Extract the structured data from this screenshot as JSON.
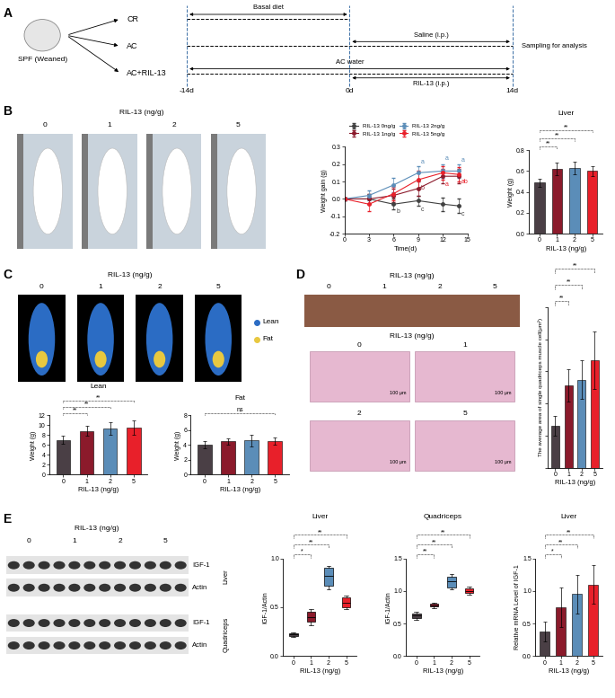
{
  "panel_labels": [
    "A",
    "B",
    "C",
    "D",
    "E"
  ],
  "diagram": {
    "animal": "SPF (Weaned)",
    "timeline": [
      {
        "value": -14,
        "label": "-14d"
      },
      {
        "value": 0,
        "label": "0d"
      },
      {
        "value": 14,
        "label": "14d"
      }
    ],
    "end_text": "Sampling for analysis",
    "groups": [
      {
        "name": "CR",
        "end": 0,
        "notes": [
          {
            "text": "Basal diet",
            "from": -14,
            "to": 0
          }
        ]
      },
      {
        "name": "AC",
        "end": 14,
        "notes": [
          {
            "text": "Saline (i.p.)",
            "from": 0,
            "to": 14
          }
        ]
      },
      {
        "name": "AC+RIL-13",
        "end": 14,
        "notes": [
          {
            "text": "AC water",
            "from": -14,
            "to": 14
          },
          {
            "text": "RIL-13 (i.p.)",
            "from": 0,
            "to": 14
          }
        ]
      }
    ]
  },
  "photos_B": {
    "header": "RIL-13 (ng/g)",
    "labels": [
      "0",
      "1",
      "2",
      "5"
    ]
  },
  "scans_C": {
    "header": "RIL-13 (ng/g)",
    "labels": [
      "0",
      "1",
      "2",
      "5"
    ],
    "legend": [
      "Lean",
      "Fat"
    ]
  },
  "photos_D": {
    "header": "RIL-13 (ng/g)",
    "labels": [
      "0",
      "1",
      "2",
      "5"
    ]
  },
  "histology_D": {
    "header": "RIL-13 (ng/g)",
    "labels": [
      "0",
      "1",
      "2",
      "5"
    ],
    "scale_bar": "100 μm"
  },
  "blot_E": {
    "header": "RIL-13 (ng/g)",
    "labels": [
      "0",
      "1",
      "2",
      "5"
    ],
    "blocks": [
      {
        "tissue": "Liver",
        "rows": [
          "IGF-1",
          "Actin"
        ]
      },
      {
        "tissue": "Quadriceps",
        "rows": [
          "IGF-1",
          "Actin"
        ]
      }
    ]
  },
  "chart_data": [
    {
      "type": "line",
      "x_label": "Time(d)",
      "y_label": "Weight gain (g)",
      "x": [
        0,
        3,
        6,
        9,
        12,
        14
      ],
      "xlim": [
        0,
        15
      ],
      "xticks": [
        0,
        3,
        6,
        9,
        12,
        15
      ],
      "ylim": [
        -0.2,
        0.3
      ],
      "yticks": [
        -0.2,
        -0.1,
        {
          "value": 0,
          "label": "0.0"
        },
        0.1,
        0.2,
        0.3
      ],
      "legend": "upper left",
      "marker": "o",
      "series": [
        {
          "name": "RIL-13 0ng/g",
          "color": "#404040",
          "values": [
            0,
            0.0,
            -0.03,
            -0.01,
            -0.03,
            -0.04
          ],
          "errors": [
            0.01,
            0.03,
            0.03,
            0.03,
            0.04,
            0.04
          ]
        },
        {
          "name": "RIL-13 1ng/g",
          "color": "#8b1a2b",
          "values": [
            0,
            0.0,
            0.02,
            0.06,
            0.13,
            0.13
          ],
          "errors": [
            0.01,
            0.03,
            0.04,
            0.04,
            0.04,
            0.04
          ]
        },
        {
          "name": "RIL-13 2ng/g",
          "color": "#5b8db8",
          "values": [
            0,
            0.02,
            0.08,
            0.15,
            0.16,
            0.16
          ],
          "errors": [
            0.01,
            0.03,
            0.04,
            0.04,
            0.04,
            0.04
          ]
        },
        {
          "name": "RIL-13 5ng/g",
          "color": "#e8202a",
          "values": [
            0,
            -0.03,
            0.03,
            0.11,
            0.15,
            0.14
          ],
          "errors": [
            0.01,
            0.04,
            0.04,
            0.05,
            0.04,
            0.04
          ]
        }
      ],
      "annotations": [
        {
          "x": 6,
          "y": -0.07,
          "text": "b",
          "color": "#404040"
        },
        {
          "x": 9,
          "y": 0.21,
          "text": "a",
          "color": "#5b8db8"
        },
        {
          "x": 9,
          "y": 0.06,
          "text": "b",
          "color": "#8b1a2b"
        },
        {
          "x": 9,
          "y": -0.06,
          "text": "c",
          "color": "#404040"
        },
        {
          "x": 12,
          "y": 0.23,
          "text": "a",
          "color": "#5b8db8"
        },
        {
          "x": 12,
          "y": 0.08,
          "text": "a",
          "color": "#e8202a"
        },
        {
          "x": 14,
          "y": 0.22,
          "text": "a",
          "color": "#5b8db8"
        },
        {
          "x": 14,
          "y": 0.1,
          "text": "ab",
          "color": "#e8202a"
        },
        {
          "x": 14,
          "y": -0.09,
          "text": "c",
          "color": "#404040"
        }
      ]
    },
    {
      "type": "bar",
      "title": "Liver",
      "x_label": "RIL-13 (ng/g)",
      "y_label": "Weight (g)",
      "categories": [
        "0",
        "1",
        "2",
        "5"
      ],
      "values": [
        0.49,
        0.62,
        0.63,
        0.6
      ],
      "errors": [
        0.04,
        0.06,
        0.06,
        0.05
      ],
      "colors": [
        "#4a3f45",
        "#8b1a2b",
        "#5b8db8",
        "#e8202a"
      ],
      "ylim": [
        0,
        0.8
      ],
      "yticks": [
        {
          "value": 0,
          "label": "0.0"
        },
        0.2,
        0.4,
        0.6,
        0.8
      ],
      "significance": [
        {
          "from": "0",
          "to": "1",
          "label": "**"
        },
        {
          "from": "0",
          "to": "2",
          "label": "**"
        },
        {
          "from": "0",
          "to": "5",
          "label": "**"
        }
      ]
    },
    {
      "type": "bar",
      "title": "Lean",
      "x_label": "RIL-13 (ng/g)",
      "y_label": "Weight (g)",
      "categories": [
        "0",
        "1",
        "2",
        "5"
      ],
      "values": [
        7.0,
        8.8,
        9.3,
        9.5
      ],
      "errors": [
        0.8,
        1.0,
        1.3,
        1.5
      ],
      "colors": [
        "#4a3f45",
        "#8b1a2b",
        "#5b8db8",
        "#e8202a"
      ],
      "ylim": [
        0,
        12
      ],
      "yticks": [
        0,
        2,
        4,
        6,
        8,
        10,
        12
      ],
      "significance": [
        {
          "from": "0",
          "to": "1",
          "label": "**"
        },
        {
          "from": "0",
          "to": "2",
          "label": "**"
        },
        {
          "from": "0",
          "to": "5",
          "label": "**"
        }
      ]
    },
    {
      "type": "bar",
      "title": "Fat",
      "x_label": "RIL-13 (ng/g)",
      "y_label": "Weight (g)",
      "categories": [
        "0",
        "1",
        "2",
        "5"
      ],
      "values": [
        4.0,
        4.5,
        4.6,
        4.5
      ],
      "errors": [
        0.5,
        0.4,
        0.8,
        0.5
      ],
      "colors": [
        "#4a3f45",
        "#8b1a2b",
        "#5b8db8",
        "#e8202a"
      ],
      "ylim": [
        0,
        8
      ],
      "yticks": [
        0,
        2,
        4,
        6,
        8
      ],
      "significance": [
        {
          "from": "0",
          "to": "5",
          "label": "ns"
        }
      ]
    },
    {
      "type": "bar",
      "x_label": "RIL-13 (ng/g)",
      "y_label": "The average area of single quadriceps muscle cell(μm²)",
      "categories": [
        "0",
        "1",
        "2",
        "5"
      ],
      "values": [
        6.5,
        12.8,
        13.7,
        16.7
      ],
      "errors": [
        1.5,
        2.5,
        3.0,
        4.5
      ],
      "colors": [
        "#4a3f45",
        "#8b1a2b",
        "#5b8db8",
        "#e8202a"
      ],
      "ylim": [
        0,
        25
      ],
      "yticks": [
        0,
        5,
        10,
        15,
        20,
        25
      ],
      "tick_labels": "x",
      "significance": [
        {
          "from": "0",
          "to": "1",
          "label": "**"
        },
        {
          "from": "0",
          "to": "2",
          "label": "**"
        },
        {
          "from": "0",
          "to": "5",
          "label": "**"
        }
      ]
    },
    {
      "type": "box",
      "title": "Liver",
      "x_label": "RIL-13 (ng/g)",
      "y_label": "IGF-1/Actin",
      "categories": [
        "0",
        "1",
        "2",
        "5"
      ],
      "boxes": [
        {
          "min": 0.2,
          "q1": 0.21,
          "median": 0.22,
          "q3": 0.23,
          "max": 0.24
        },
        {
          "min": 0.32,
          "q1": 0.35,
          "median": 0.4,
          "q3": 0.45,
          "max": 0.48
        },
        {
          "min": 0.68,
          "q1": 0.72,
          "median": 0.82,
          "q3": 0.9,
          "max": 0.92
        },
        {
          "min": 0.48,
          "q1": 0.5,
          "median": 0.55,
          "q3": 0.6,
          "max": 0.62
        }
      ],
      "colors": [
        "#4a3f45",
        "#8b1a2b",
        "#5b8db8",
        "#e8202a"
      ],
      "ylim": [
        0,
        1.0
      ],
      "yticks": [
        {
          "value": 0,
          "label": "0.0"
        },
        0.5,
        {
          "value": 1,
          "label": "1.0"
        }
      ],
      "significance": [
        {
          "from": "0",
          "to": "1",
          "label": "*"
        },
        {
          "from": "0",
          "to": "2",
          "label": "**"
        },
        {
          "from": "0",
          "to": "5",
          "label": "**"
        }
      ]
    },
    {
      "type": "box",
      "title": "Quadriceps",
      "x_label": "RIL-13 (ng/g)",
      "y_label": "IGF-1/Actin",
      "categories": [
        "0",
        "1",
        "2",
        "5"
      ],
      "boxes": [
        {
          "min": 0.55,
          "q1": 0.58,
          "median": 0.62,
          "q3": 0.66,
          "max": 0.68
        },
        {
          "min": 0.74,
          "q1": 0.76,
          "median": 0.78,
          "q3": 0.8,
          "max": 0.82
        },
        {
          "min": 1.02,
          "q1": 1.06,
          "median": 1.15,
          "q3": 1.22,
          "max": 1.26
        },
        {
          "min": 0.94,
          "q1": 0.97,
          "median": 1.0,
          "q3": 1.04,
          "max": 1.07
        }
      ],
      "colors": [
        "#4a3f45",
        "#8b1a2b",
        "#5b8db8",
        "#e8202a"
      ],
      "ylim": [
        0,
        1.5
      ],
      "yticks": [
        {
          "value": 0,
          "label": "0.0"
        },
        0.5,
        {
          "value": 1,
          "label": "1.0"
        },
        1.5
      ],
      "significance": [
        {
          "from": "0",
          "to": "1",
          "label": "**"
        },
        {
          "from": "0",
          "to": "2",
          "label": "**"
        },
        {
          "from": "0",
          "to": "5",
          "label": "**"
        }
      ]
    },
    {
      "type": "bar",
      "title": "Liver",
      "x_label": "RIL-13 (ng/g)",
      "y_label": "Relative mRNA Level of IGF-1",
      "categories": [
        "0",
        "1",
        "2",
        "5"
      ],
      "values": [
        0.38,
        0.75,
        0.95,
        1.1
      ],
      "errors": [
        0.15,
        0.3,
        0.3,
        0.3
      ],
      "colors": [
        "#4a3f45",
        "#8b1a2b",
        "#5b8db8",
        "#e8202a"
      ],
      "ylim": [
        0,
        1.5
      ],
      "yticks": [
        {
          "value": 0,
          "label": "0.0"
        },
        0.5,
        {
          "value": 1,
          "label": "1.0"
        },
        1.5
      ],
      "significance": [
        {
          "from": "0",
          "to": "1",
          "label": "*"
        },
        {
          "from": "0",
          "to": "2",
          "label": "**"
        },
        {
          "from": "0",
          "to": "5",
          "label": "**"
        }
      ]
    }
  ]
}
